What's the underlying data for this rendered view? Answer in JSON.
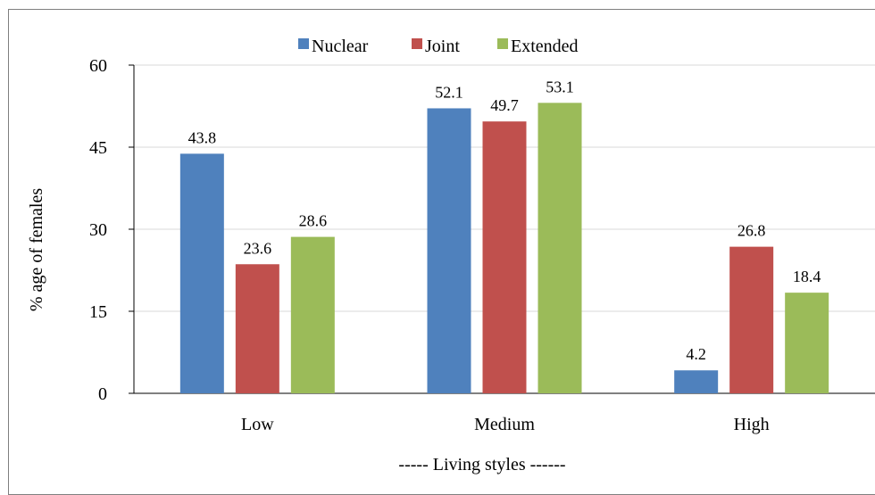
{
  "chart_data": {
    "type": "bar",
    "categories": [
      "Low",
      "Medium",
      "High"
    ],
    "series": [
      {
        "name": "Nuclear",
        "values": [
          43.8,
          52.1,
          4.2
        ],
        "color": "#4F81BD"
      },
      {
        "name": "Joint",
        "values": [
          23.6,
          49.7,
          26.8
        ],
        "color": "#C0504D"
      },
      {
        "name": "Extended",
        "values": [
          28.6,
          53.1,
          18.4
        ],
        "color": "#9BBB59"
      }
    ],
    "data_labels": [
      [
        "43.8",
        "52.1",
        "4.2"
      ],
      [
        "23.6",
        "49.7",
        "26.8"
      ],
      [
        "28.6",
        "53.1",
        "18.4"
      ]
    ],
    "title": "",
    "xlabel": "----- Living styles ------",
    "ylabel": "% age of females",
    "ylim": [
      0,
      60
    ],
    "yticks": [
      0,
      15,
      30,
      45,
      60
    ],
    "ytick_labels": [
      "0",
      "15",
      "30",
      "45",
      "60"
    ],
    "grid": true,
    "legend_position": "top-center"
  }
}
